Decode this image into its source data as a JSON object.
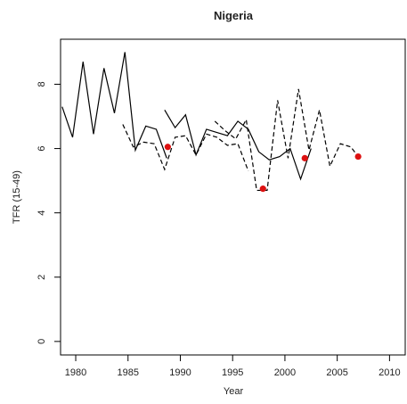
{
  "chart_data": {
    "type": "line",
    "title": "Nigeria",
    "x_label": "Year",
    "y_label": "TFR (15-49)",
    "xlim": [
      1978.55,
      2011.5
    ],
    "ylim": [
      -0.42,
      9.4
    ],
    "xticks": [
      1980,
      1985,
      1990,
      1995,
      2000,
      2005,
      2010
    ],
    "yticks": [
      0,
      2,
      4,
      6,
      8
    ],
    "series": [
      {
        "style": "solid",
        "color": "#000000",
        "x": [
          1978.7,
          1979.7,
          1980.7,
          1981.7,
          1982.7,
          1983.7,
          1984.7,
          1985.7,
          1986.7,
          1987.7,
          1988.7
        ],
        "values": [
          7.3,
          6.35,
          8.7,
          6.45,
          8.5,
          7.1,
          9.0,
          5.95,
          6.7,
          6.6,
          5.7
        ]
      },
      {
        "style": "solid",
        "color": "#000000",
        "x": [
          1988.5,
          1989.5,
          1990.5,
          1991.5,
          1992.5,
          1993.5,
          1994.5,
          1995.5,
          1996.5,
          1997.5,
          1998.5,
          1999.5,
          2000.5,
          2001.5,
          2002.5
        ],
        "values": [
          7.2,
          6.65,
          7.05,
          5.8,
          6.6,
          6.5,
          6.4,
          6.85,
          6.6,
          5.9,
          5.65,
          5.75,
          6.0,
          5.05,
          6.0
        ]
      },
      {
        "style": "dashed",
        "color": "#000000",
        "x": [
          1984.5,
          1985.5,
          1986.5,
          1987.5,
          1988.5,
          1989.5,
          1990.5,
          1991.5,
          1992.5,
          1993.5,
          1994.5,
          1995.5,
          1996.5
        ],
        "values": [
          6.75,
          6.05,
          6.2,
          6.15,
          5.35,
          6.35,
          6.4,
          5.8,
          6.45,
          6.35,
          6.1,
          6.15,
          5.3
        ]
      },
      {
        "style": "dashed",
        "color": "#000000",
        "x": [
          1993.3,
          1994.3,
          1995.3,
          1996.3,
          1997.3,
          1998.3,
          1999.3,
          2000.3,
          2001.3,
          2002.3,
          2003.3,
          2004.3,
          2005.3,
          2006.3,
          2007.0
        ],
        "values": [
          6.85,
          6.55,
          6.3,
          6.9,
          4.7,
          4.7,
          7.5,
          5.7,
          7.85,
          5.95,
          7.2,
          5.45,
          6.15,
          6.05,
          5.75
        ]
      },
      {
        "style": "points",
        "color": "#dd1111",
        "x": [
          1988.8,
          1997.9,
          2001.9,
          2007.0
        ],
        "values": [
          6.05,
          4.75,
          5.7,
          5.75
        ]
      }
    ]
  }
}
